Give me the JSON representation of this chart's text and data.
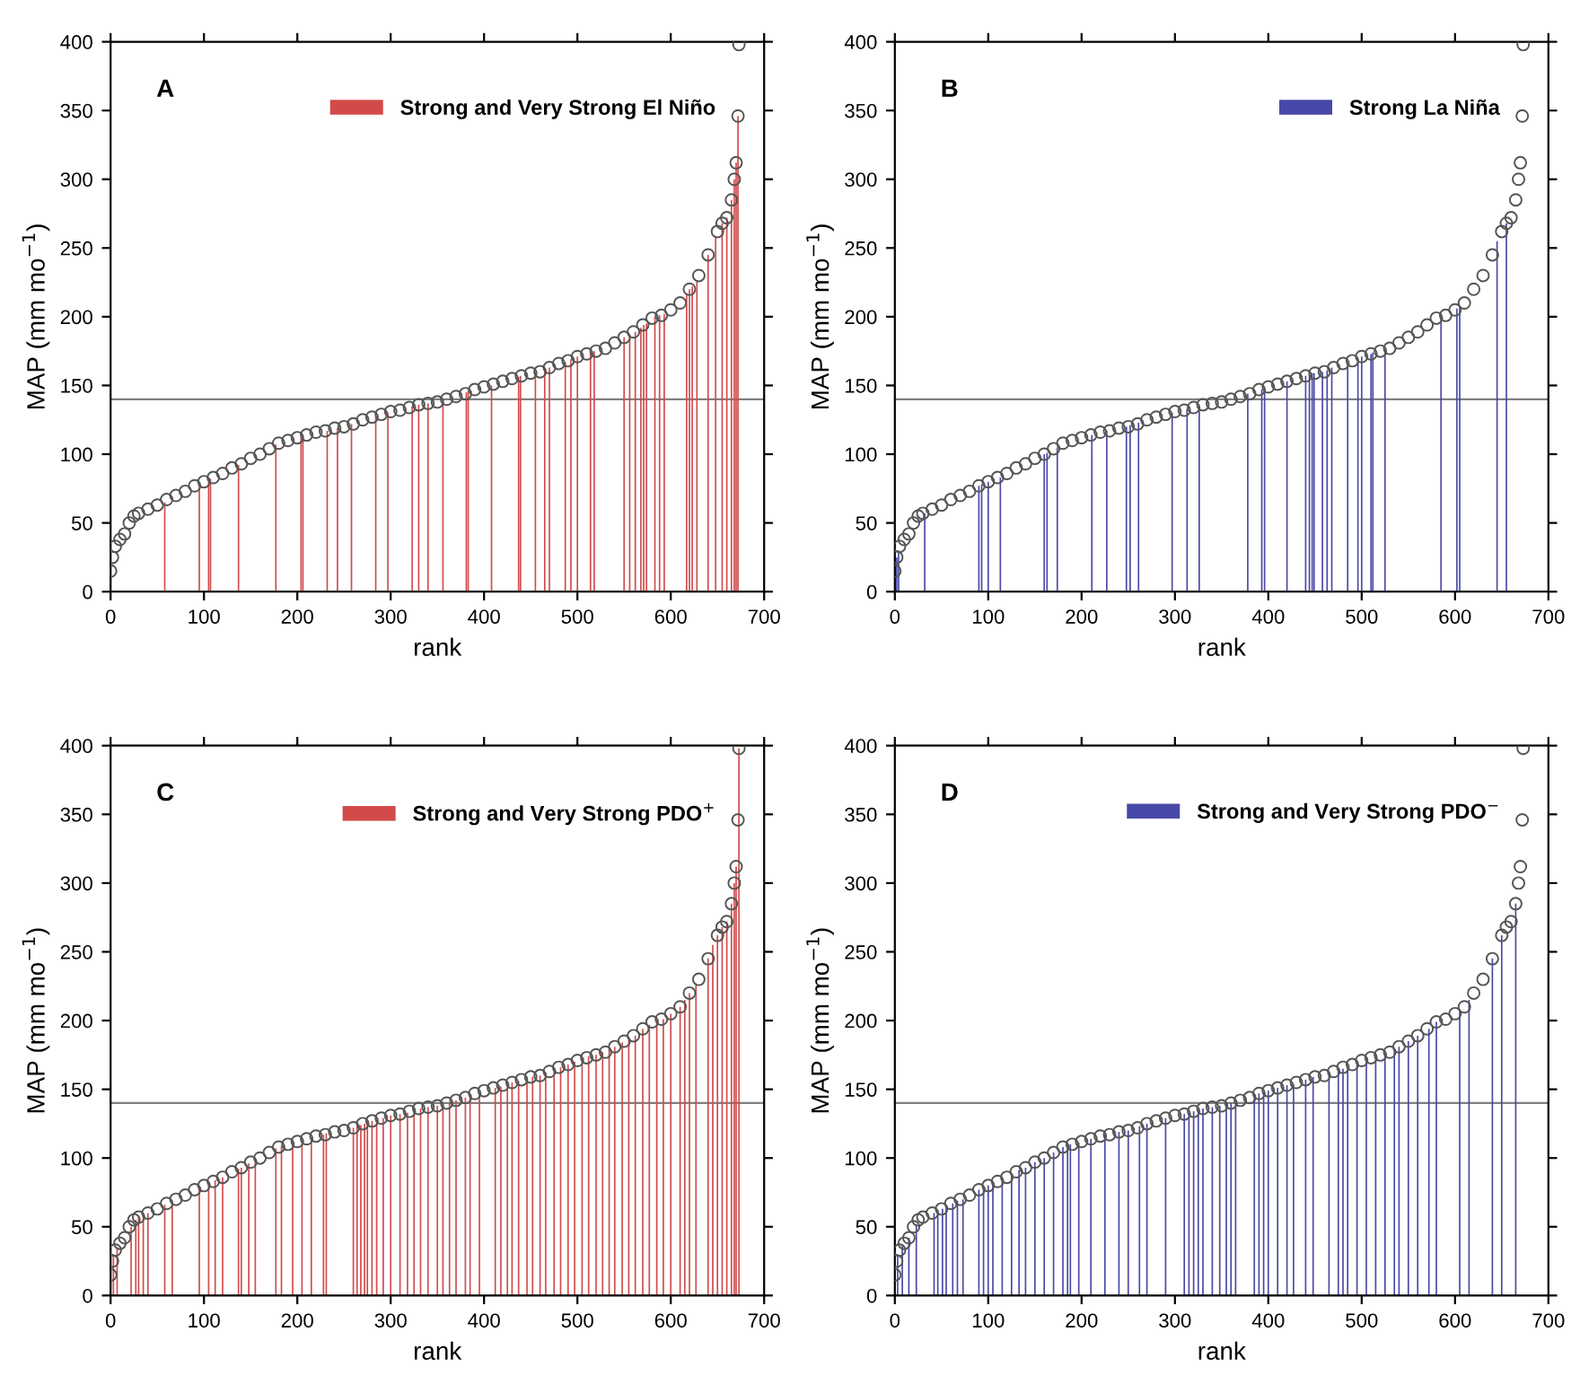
{
  "chart_data": [
    {
      "type": "bar",
      "xlabel": "rank",
      "ylabel": "MAP (mm mo$^{−1}$)",
      "xlim": [
        0,
        700
      ],
      "ylim": [
        0,
        400
      ],
      "xticks": [
        0,
        100,
        200,
        300,
        400,
        500,
        600,
        700
      ],
      "yticks": [
        0,
        50,
        100,
        150,
        200,
        250,
        300,
        350,
        400
      ],
      "legend": "top right",
      "marker": "circle",
      "annotations": [
        "A"
      ],
      "ref_lines": [
        {
          "axis": "y",
          "value": 140,
          "label": null,
          "color": "#808080"
        }
      ],
      "series": [
        {
          "type": "scatter",
          "color": "#555555",
          "x": [
            0,
            2,
            5,
            10,
            15,
            20,
            25,
            30,
            40,
            50,
            60,
            70,
            80,
            90,
            100,
            110,
            120,
            130,
            140,
            150,
            160,
            170,
            180,
            190,
            200,
            210,
            220,
            230,
            240,
            250,
            260,
            270,
            280,
            290,
            300,
            310,
            320,
            330,
            340,
            350,
            360,
            370,
            380,
            390,
            400,
            410,
            420,
            430,
            440,
            450,
            460,
            470,
            480,
            490,
            500,
            510,
            520,
            530,
            540,
            550,
            560,
            570,
            580,
            590,
            600,
            610,
            620,
            630,
            640,
            650,
            655,
            660,
            665,
            668,
            670,
            672,
            673
          ],
          "values": [
            15,
            25,
            33,
            38,
            42,
            50,
            55,
            57,
            60,
            63,
            67,
            70,
            73,
            77,
            80,
            83,
            86,
            90,
            93,
            97,
            100,
            104,
            108,
            110,
            112,
            114,
            116,
            117,
            119,
            120,
            122,
            125,
            127,
            129,
            131,
            132,
            134,
            136,
            137,
            138,
            140,
            142,
            144,
            147,
            149,
            151,
            153,
            155,
            157,
            159,
            160,
            163,
            166,
            168,
            171,
            173,
            175,
            177,
            181,
            185,
            189,
            194,
            199,
            201,
            205,
            210,
            220,
            230,
            245,
            262,
            268,
            272,
            285,
            300,
            312,
            346,
            398
          ]
        },
        {
          "name": "Strong and Very Strong El Niño",
          "color": "#d24a4a",
          "x": [
            58,
            95,
            105,
            107,
            137,
            177,
            204,
            206,
            232,
            243,
            258,
            284,
            297,
            323,
            330,
            340,
            356,
            381,
            383,
            408,
            437,
            439,
            455,
            465,
            470,
            487,
            493,
            500,
            514,
            518,
            550,
            556,
            562,
            568,
            571,
            574,
            583,
            588,
            593,
            617,
            620,
            623,
            628,
            640,
            648,
            655,
            660,
            665,
            668,
            670,
            672
          ],
          "values": [
            65,
            78,
            81,
            82,
            92,
            107,
            112,
            113,
            117,
            119,
            122,
            128,
            130,
            135,
            136,
            137,
            139,
            145,
            146,
            150,
            156,
            157,
            160,
            161,
            163,
            167,
            169,
            171,
            174,
            175,
            185,
            187,
            189,
            192,
            194,
            195,
            200,
            201,
            202,
            217,
            220,
            222,
            226,
            245,
            258,
            268,
            272,
            285,
            300,
            312,
            346
          ]
        }
      ]
    },
    {
      "type": "bar",
      "xlabel": "rank",
      "ylabel": "MAP (mm mo$^{−1}$)",
      "xlim": [
        0,
        700
      ],
      "ylim": [
        0,
        400
      ],
      "xticks": [
        0,
        100,
        200,
        300,
        400,
        500,
        600,
        700
      ],
      "yticks": [
        0,
        50,
        100,
        150,
        200,
        250,
        300,
        350,
        400
      ],
      "legend": "top right",
      "marker": "circle",
      "annotations": [
        "B"
      ],
      "ref_lines": [
        {
          "axis": "y",
          "value": 140,
          "label": null,
          "color": "#808080"
        }
      ],
      "series": [
        {
          "type": "scatter",
          "color": "#555555",
          "x": [
            0,
            2,
            5,
            10,
            15,
            20,
            25,
            30,
            40,
            50,
            60,
            70,
            80,
            90,
            100,
            110,
            120,
            130,
            140,
            150,
            160,
            170,
            180,
            190,
            200,
            210,
            220,
            230,
            240,
            250,
            260,
            270,
            280,
            290,
            300,
            310,
            320,
            330,
            340,
            350,
            360,
            370,
            380,
            390,
            400,
            410,
            420,
            430,
            440,
            450,
            460,
            470,
            480,
            490,
            500,
            510,
            520,
            530,
            540,
            550,
            560,
            570,
            580,
            590,
            600,
            610,
            620,
            630,
            640,
            650,
            655,
            660,
            665,
            668,
            670,
            672,
            673
          ],
          "values": [
            15,
            25,
            33,
            38,
            42,
            50,
            55,
            57,
            60,
            63,
            67,
            70,
            73,
            77,
            80,
            83,
            86,
            90,
            93,
            97,
            100,
            104,
            108,
            110,
            112,
            114,
            116,
            117,
            119,
            120,
            122,
            125,
            127,
            129,
            131,
            132,
            134,
            136,
            137,
            138,
            140,
            142,
            144,
            147,
            149,
            151,
            153,
            155,
            157,
            159,
            160,
            163,
            166,
            168,
            171,
            173,
            175,
            177,
            181,
            185,
            189,
            194,
            199,
            201,
            205,
            210,
            220,
            230,
            245,
            262,
            268,
            272,
            285,
            300,
            312,
            346,
            398
          ]
        },
        {
          "name": "Strong La Niña",
          "color": "#4848a8",
          "x": [
            2,
            4,
            32,
            90,
            93,
            100,
            113,
            160,
            163,
            174,
            211,
            227,
            248,
            252,
            261,
            297,
            313,
            326,
            378,
            393,
            396,
            420,
            440,
            444,
            447,
            449,
            458,
            463,
            468,
            485,
            496,
            500,
            510,
            512,
            525,
            585,
            602,
            605,
            645,
            655
          ],
          "values": [
            25,
            30,
            57,
            77,
            78,
            80,
            83,
            100,
            101,
            105,
            114,
            117,
            120,
            121,
            123,
            130,
            133,
            135,
            144,
            147,
            148,
            153,
            157,
            158,
            159,
            159,
            160,
            161,
            163,
            166,
            169,
            171,
            173,
            174,
            176,
            200,
            206,
            208,
            255,
            268
          ]
        }
      ]
    },
    {
      "type": "bar",
      "xlabel": "rank",
      "ylabel": "MAP (mm mo$^{−1}$)",
      "xlim": [
        0,
        700
      ],
      "ylim": [
        0,
        400
      ],
      "xticks": [
        0,
        100,
        200,
        300,
        400,
        500,
        600,
        700
      ],
      "yticks": [
        0,
        50,
        100,
        150,
        200,
        250,
        300,
        350,
        400
      ],
      "legend": "top right",
      "marker": "circle",
      "annotations": [
        "C"
      ],
      "ref_lines": [
        {
          "axis": "y",
          "value": 140,
          "label": null,
          "color": "#808080"
        }
      ],
      "series": [
        {
          "type": "scatter",
          "color": "#555555",
          "x": [
            0,
            2,
            5,
            10,
            15,
            20,
            25,
            30,
            40,
            50,
            60,
            70,
            80,
            90,
            100,
            110,
            120,
            130,
            140,
            150,
            160,
            170,
            180,
            190,
            200,
            210,
            220,
            230,
            240,
            250,
            260,
            270,
            280,
            290,
            300,
            310,
            320,
            330,
            340,
            350,
            360,
            370,
            380,
            390,
            400,
            410,
            420,
            430,
            440,
            450,
            460,
            470,
            480,
            490,
            500,
            510,
            520,
            530,
            540,
            550,
            560,
            570,
            580,
            590,
            600,
            610,
            620,
            630,
            640,
            650,
            655,
            660,
            665,
            668,
            670,
            672,
            673
          ],
          "values": [
            15,
            25,
            33,
            38,
            42,
            50,
            55,
            57,
            60,
            63,
            67,
            70,
            73,
            77,
            80,
            83,
            86,
            90,
            93,
            97,
            100,
            104,
            108,
            110,
            112,
            114,
            116,
            117,
            119,
            120,
            122,
            125,
            127,
            129,
            131,
            132,
            134,
            136,
            137,
            138,
            140,
            142,
            144,
            147,
            149,
            151,
            153,
            155,
            157,
            159,
            160,
            163,
            166,
            168,
            171,
            173,
            175,
            177,
            181,
            185,
            189,
            194,
            199,
            201,
            205,
            210,
            220,
            230,
            245,
            262,
            268,
            272,
            285,
            300,
            312,
            346,
            398
          ]
        },
        {
          "name": "Strong and Very Strong PDO$^{+}$",
          "color": "#d24a4a",
          "x": [
            3,
            7,
            22,
            27,
            30,
            35,
            40,
            58,
            66,
            95,
            105,
            112,
            120,
            137,
            140,
            148,
            155,
            177,
            183,
            195,
            205,
            215,
            228,
            231,
            260,
            264,
            268,
            272,
            275,
            280,
            285,
            292,
            300,
            310,
            318,
            325,
            332,
            340,
            350,
            356,
            363,
            370,
            380,
            385,
            395,
            412,
            418,
            425,
            430,
            437,
            446,
            452,
            460,
            466,
            475,
            482,
            490,
            497,
            505,
            512,
            520,
            527,
            534,
            540,
            548,
            555,
            562,
            570,
            577,
            585,
            592,
            600,
            610,
            615,
            620,
            627,
            640,
            645,
            650,
            655,
            660,
            665,
            668,
            670,
            673
          ],
          "values": [
            30,
            35,
            50,
            55,
            57,
            58,
            60,
            66,
            69,
            78,
            81,
            84,
            86,
            92,
            93,
            96,
            98,
            107,
            109,
            111,
            113,
            115,
            117,
            118,
            122,
            123,
            124,
            125,
            126,
            127,
            128,
            129,
            131,
            132,
            133,
            135,
            136,
            137,
            138,
            139,
            140,
            142,
            144,
            145,
            148,
            151,
            152,
            154,
            155,
            156,
            158,
            159,
            160,
            162,
            164,
            166,
            168,
            170,
            172,
            174,
            175,
            177,
            179,
            181,
            184,
            186,
            189,
            194,
            197,
            200,
            201,
            205,
            210,
            215,
            220,
            227,
            245,
            255,
            262,
            268,
            272,
            285,
            300,
            312,
            398
          ]
        }
      ]
    },
    {
      "type": "bar",
      "xlabel": "rank",
      "ylabel": "MAP (mm mo$^{−1}$)",
      "xlim": [
        0,
        700
      ],
      "ylim": [
        0,
        400
      ],
      "xticks": [
        0,
        100,
        200,
        300,
        400,
        500,
        600,
        700
      ],
      "yticks": [
        0,
        50,
        100,
        150,
        200,
        250,
        300,
        350,
        400
      ],
      "legend": "top right",
      "marker": "circle",
      "annotations": [
        "D"
      ],
      "ref_lines": [
        {
          "axis": "y",
          "value": 140,
          "label": null,
          "color": "#808080"
        }
      ],
      "series": [
        {
          "type": "scatter",
          "color": "#555555",
          "x": [
            0,
            2,
            5,
            10,
            15,
            20,
            25,
            30,
            40,
            50,
            60,
            70,
            80,
            90,
            100,
            110,
            120,
            130,
            140,
            150,
            160,
            170,
            180,
            190,
            200,
            210,
            220,
            230,
            240,
            250,
            260,
            270,
            280,
            290,
            300,
            310,
            320,
            330,
            340,
            350,
            360,
            370,
            380,
            390,
            400,
            410,
            420,
            430,
            440,
            450,
            460,
            470,
            480,
            490,
            500,
            510,
            520,
            530,
            540,
            550,
            560,
            570,
            580,
            590,
            600,
            610,
            620,
            630,
            640,
            650,
            655,
            660,
            665,
            668,
            670,
            672,
            673
          ],
          "values": [
            15,
            25,
            33,
            38,
            42,
            50,
            55,
            57,
            60,
            63,
            67,
            70,
            73,
            77,
            80,
            83,
            86,
            90,
            93,
            97,
            100,
            104,
            108,
            110,
            112,
            114,
            116,
            117,
            119,
            120,
            122,
            125,
            127,
            129,
            131,
            132,
            134,
            136,
            137,
            138,
            140,
            142,
            144,
            147,
            149,
            151,
            153,
            155,
            157,
            159,
            160,
            163,
            166,
            168,
            171,
            173,
            175,
            177,
            181,
            185,
            189,
            194,
            199,
            201,
            205,
            210,
            220,
            230,
            245,
            262,
            268,
            272,
            285,
            300,
            312,
            346,
            398
          ]
        },
        {
          "name": "Strong and Very Strong PDO$^{−}$",
          "color": "#4848a8",
          "x": [
            3,
            8,
            15,
            23,
            42,
            46,
            51,
            55,
            62,
            67,
            73,
            90,
            95,
            100,
            105,
            115,
            125,
            133,
            140,
            150,
            160,
            170,
            180,
            185,
            188,
            197,
            210,
            225,
            240,
            250,
            262,
            270,
            290,
            310,
            315,
            320,
            325,
            330,
            340,
            348,
            355,
            360,
            365,
            385,
            390,
            395,
            400,
            410,
            420,
            427,
            440,
            448,
            465,
            475,
            480,
            485,
            495,
            505,
            515,
            525,
            535,
            540,
            550,
            560,
            572,
            580,
            605,
            615,
            640,
            650,
            665
          ],
          "values": [
            30,
            36,
            42,
            52,
            60,
            62,
            63,
            65,
            67,
            69,
            70,
            77,
            78,
            80,
            81,
            84,
            87,
            91,
            93,
            97,
            100,
            104,
            108,
            109,
            110,
            111,
            114,
            117,
            119,
            120,
            123,
            125,
            129,
            132,
            133,
            134,
            135,
            136,
            137,
            138,
            139,
            140,
            141,
            145,
            147,
            148,
            149,
            151,
            153,
            154,
            157,
            159,
            161,
            164,
            165,
            166,
            169,
            172,
            174,
            176,
            179,
            181,
            185,
            189,
            194,
            199,
            207,
            215,
            245,
            262,
            285
          ]
        }
      ]
    }
  ]
}
